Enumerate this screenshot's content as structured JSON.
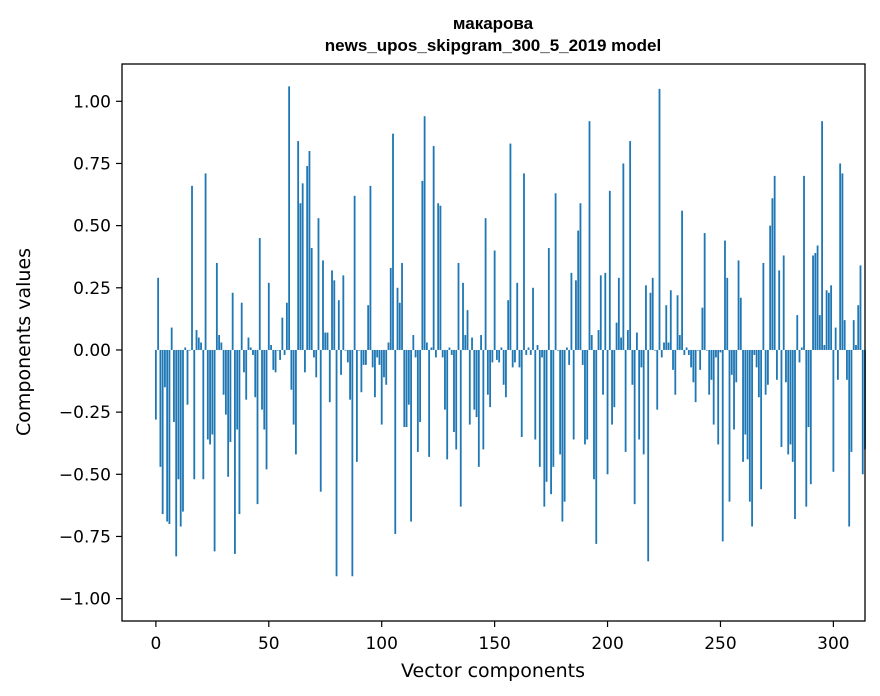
{
  "chart_data": {
    "type": "bar",
    "title": "макарова",
    "subtitle": "news_upos_skipgram_300_5_2019 model",
    "xlabel": "Vector components",
    "ylabel": "Components values",
    "xlim": [
      -15,
      314
    ],
    "ylim": [
      -1.09,
      1.15
    ],
    "xticks": [
      0,
      50,
      100,
      150,
      200,
      250,
      300
    ],
    "xtick_labels": [
      "0",
      "50",
      "100",
      "150",
      "200",
      "250",
      "300"
    ],
    "yticks": [
      1.0,
      0.75,
      0.5,
      0.25,
      0.0,
      -0.25,
      -0.5,
      -0.75,
      -1.0
    ],
    "ytick_labels": [
      "1.00",
      "0.75",
      "0.50",
      "0.25",
      "0.00",
      "−0.25",
      "−0.50",
      "−0.75",
      "−1.00"
    ],
    "grid": false,
    "bar_color": "#1f77b4",
    "values": [
      -0.28,
      0.29,
      -0.47,
      -0.66,
      -0.15,
      -0.69,
      -0.7,
      0.09,
      -0.29,
      -0.83,
      -0.52,
      -0.71,
      -0.65,
      0.01,
      -0.22,
      0.0,
      0.66,
      -0.52,
      0.08,
      0.05,
      0.03,
      -0.52,
      0.71,
      -0.36,
      -0.38,
      -0.34,
      -0.81,
      0.35,
      0.06,
      0.03,
      -0.18,
      -0.26,
      -0.51,
      -0.37,
      0.23,
      -0.82,
      -0.32,
      -0.66,
      0.19,
      -0.09,
      -0.2,
      0.05,
      0.01,
      -0.02,
      -0.19,
      -0.62,
      0.45,
      -0.24,
      -0.32,
      -0.48,
      0.27,
      0.02,
      -0.08,
      -0.09,
      0.0,
      -0.04,
      0.13,
      -0.02,
      0.19,
      1.06,
      -0.16,
      -0.3,
      -0.42,
      0.84,
      0.59,
      0.67,
      -0.09,
      0.74,
      0.8,
      0.41,
      -0.03,
      -0.11,
      0.53,
      -0.57,
      0.36,
      0.07,
      0.07,
      -0.21,
      0.32,
      0.28,
      -0.91,
      0.2,
      -0.1,
      0.3,
      0.0,
      -0.05,
      -0.2,
      -0.91,
      0.62,
      -0.45,
      0.0,
      -0.17,
      -0.06,
      -0.06,
      0.18,
      0.66,
      -0.07,
      -0.19,
      -0.03,
      -0.06,
      -0.3,
      -0.11,
      -0.14,
      0.03,
      0.33,
      0.87,
      -0.74,
      0.25,
      0.19,
      0.35,
      -0.31,
      -0.31,
      -0.22,
      -0.69,
      0.06,
      -0.03,
      -0.41,
      -0.29,
      0.68,
      0.94,
      0.03,
      -0.43,
      0.01,
      0.82,
      -0.03,
      0.59,
      0.58,
      -0.03,
      -0.24,
      -0.44,
      0.01,
      -0.02,
      -0.33,
      -0.4,
      0.35,
      -0.63,
      0.27,
      0.06,
      0.16,
      -0.3,
      0.05,
      -0.24,
      -0.27,
      -0.47,
      0.06,
      -0.4,
      0.53,
      -0.18,
      -0.23,
      -0.05,
      0.4,
      -0.04,
      -0.05,
      0.01,
      -0.14,
      -0.19,
      0.2,
      0.83,
      -0.07,
      -0.05,
      0.27,
      -0.07,
      -0.35,
      0.71,
      -0.02,
      0.01,
      -0.02,
      0.25,
      -0.36,
      0.02,
      -0.47,
      -0.03,
      -0.63,
      -0.53,
      0.41,
      -0.58,
      -0.47,
      0.63,
      0.0,
      -0.42,
      -0.69,
      -0.61,
      0.01,
      -0.06,
      0.31,
      -0.36,
      0.28,
      0.48,
      0.59,
      -0.06,
      -0.38,
      -0.36,
      0.92,
      0.06,
      -0.52,
      -0.78,
      0.08,
      0.3,
      -0.18,
      0.31,
      -0.5,
      0.64,
      -0.3,
      -0.23,
      0.11,
      0.29,
      0.05,
      0.75,
      -0.41,
      0.08,
      0.84,
      -0.14,
      -0.62,
      0.07,
      -0.36,
      -0.07,
      -0.42,
      0.26,
      -0.85,
      0.23,
      0.29,
      0.0,
      -0.24,
      1.05,
      -0.03,
      0.03,
      0.18,
      0.03,
      0.24,
      -0.08,
      -0.18,
      0.22,
      0.06,
      0.56,
      -0.02,
      0.01,
      -0.02,
      -0.07,
      -0.13,
      -0.21,
      0.0,
      -0.08,
      0.17,
      0.47,
      0.0,
      -0.18,
      -0.12,
      -0.3,
      -0.03,
      -0.38,
      -0.01,
      -0.77,
      0.44,
      0.29,
      -0.61,
      -0.1,
      -0.32,
      -0.13,
      0.36,
      0.21,
      -0.45,
      -0.34,
      -0.44,
      -0.61,
      -0.71,
      -0.02,
      -0.07,
      -0.19,
      -0.56,
      0.35,
      -0.18,
      -0.14,
      0.5,
      0.61,
      0.7,
      -0.12,
      0.32,
      -0.39,
      0.38,
      -0.13,
      -0.42,
      -0.38,
      -0.45,
      -0.68,
      0.14,
      -0.05,
      0.01,
      0.7,
      -0.63,
      -0.31,
      -0.54,
      0.38,
      0.39,
      0.42,
      0.14,
      0.92,
      0.02,
      0.24,
      0.23,
      0.26,
      -0.49,
      0.09,
      -0.12,
      0.75,
      0.71,
      0.12,
      -0.12,
      -0.71,
      -0.41,
      0.12,
      0.02,
      0.18,
      0.34,
      -0.5,
      -0.4
    ]
  }
}
